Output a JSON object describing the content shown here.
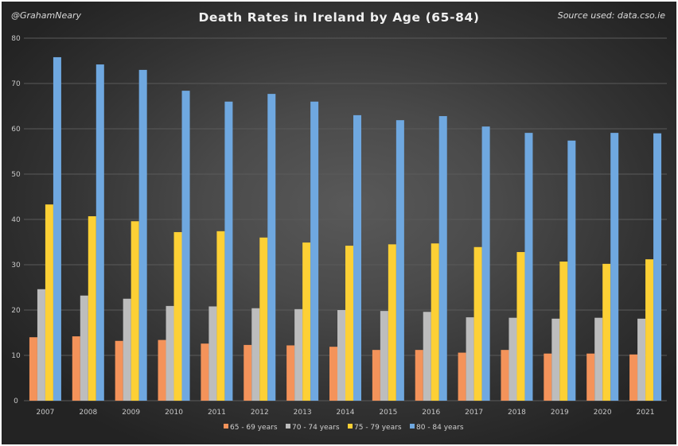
{
  "header": {
    "handle": "@GrahamNeary",
    "source": "Source used: data.cso.ie"
  },
  "colors": {
    "series": [
      "#f4935a",
      "#bdbdbd",
      "#fdd035",
      "#6fa8e0"
    ],
    "gridline": "#5a5a5a"
  },
  "chart_data": {
    "type": "bar",
    "title": "Death Rates in Ireland by Age (65-84)",
    "xlabel": "",
    "ylabel": "",
    "ylim": [
      0,
      80
    ],
    "yticks": [
      0,
      10,
      20,
      30,
      40,
      50,
      60,
      70,
      80
    ],
    "grid": true,
    "legend_position": "bottom",
    "categories": [
      "2007",
      "2008",
      "2009",
      "2010",
      "2011",
      "2012",
      "2013",
      "2014",
      "2015",
      "2016",
      "2017",
      "2018",
      "2019",
      "2020",
      "2021"
    ],
    "series": [
      {
        "name": "65 - 69 years",
        "values": [
          14.0,
          14.2,
          13.2,
          13.4,
          12.6,
          12.3,
          12.2,
          11.9,
          11.2,
          11.2,
          10.6,
          11.2,
          10.4,
          10.4,
          10.2
        ]
      },
      {
        "name": "70 - 74 years",
        "values": [
          24.6,
          23.2,
          22.5,
          20.9,
          20.8,
          20.4,
          20.2,
          20.0,
          19.8,
          19.6,
          18.4,
          18.3,
          18.1,
          18.3,
          18.1
        ]
      },
      {
        "name": "75 - 79 years",
        "values": [
          43.3,
          40.7,
          39.6,
          37.2,
          37.4,
          36.0,
          34.9,
          34.2,
          34.5,
          34.7,
          33.9,
          32.8,
          30.7,
          30.2,
          31.2
        ]
      },
      {
        "name": "80 - 84 years",
        "values": [
          75.8,
          74.2,
          73.0,
          68.4,
          66.0,
          67.7,
          66.0,
          63.0,
          61.9,
          62.8,
          60.5,
          59.1,
          57.4,
          59.1,
          59.0
        ]
      }
    ]
  }
}
